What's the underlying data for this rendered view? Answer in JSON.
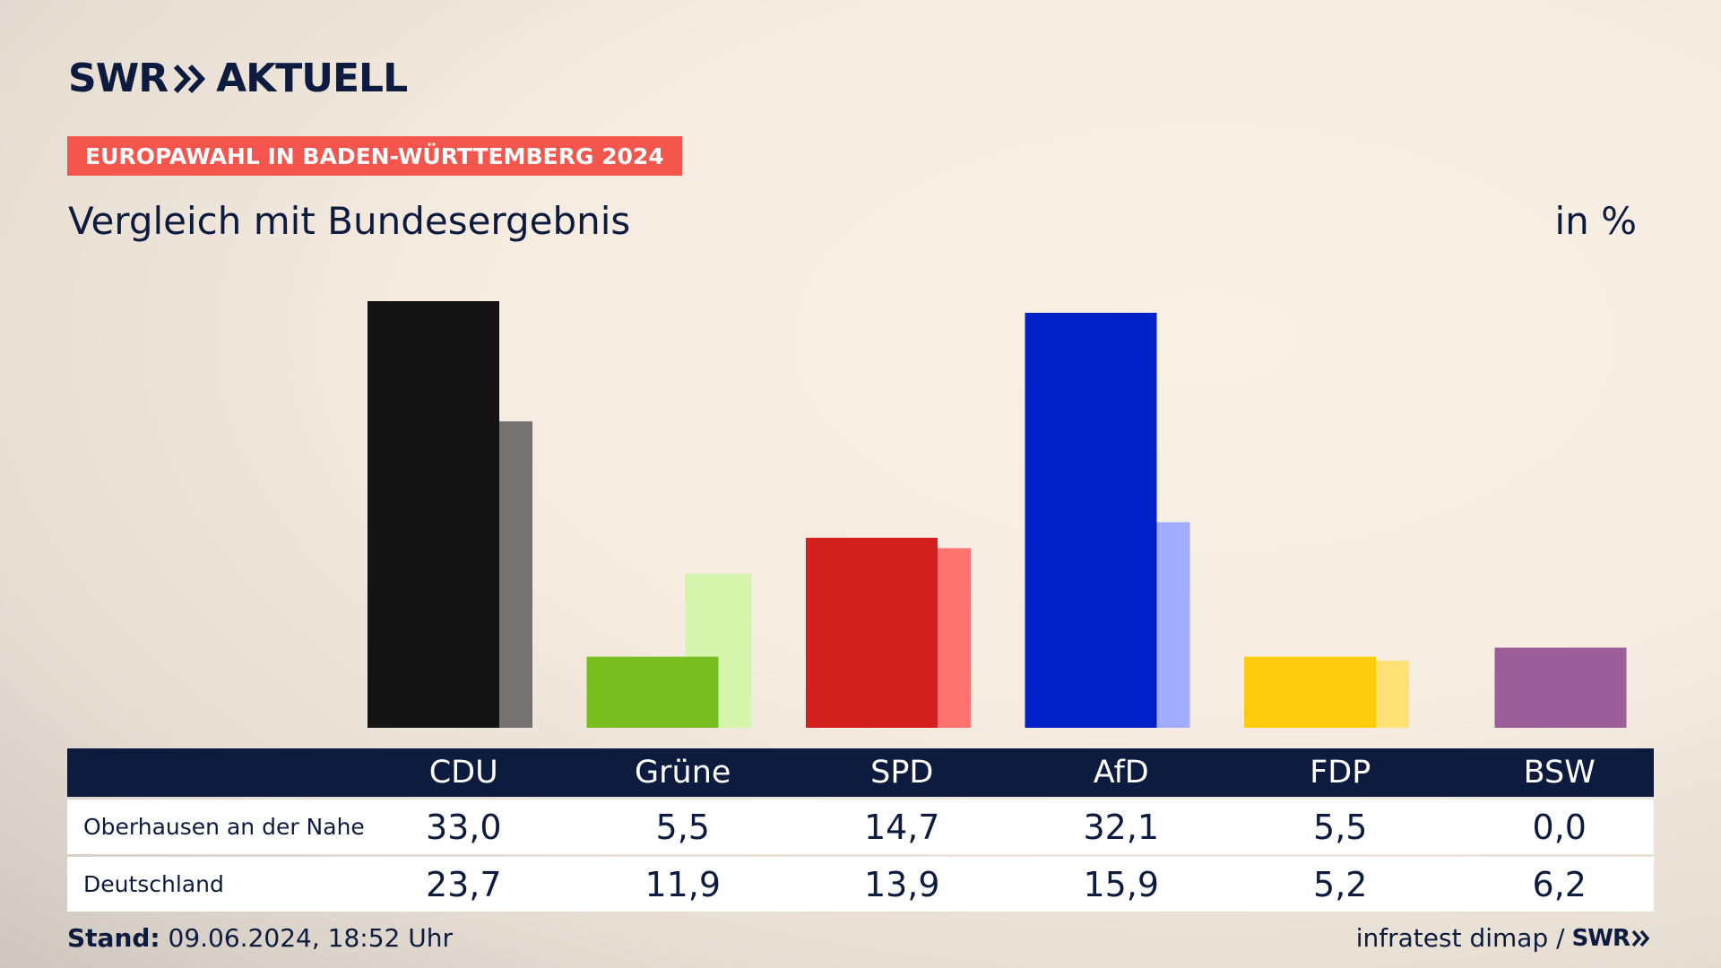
{
  "header": {
    "brand": "SWR",
    "brand_product": "AKTUELL",
    "badge": "EUROPAWAHL IN BADEN-WÜRTTEMBERG 2024",
    "title": "Vergleich mit Bundesergebnis",
    "unit": "in %"
  },
  "chart_data": {
    "type": "bar",
    "categories": [
      "CDU",
      "Grüne",
      "SPD",
      "AfD",
      "FDP",
      "BSW"
    ],
    "series": [
      {
        "name": "Oberhausen an der Nahe",
        "values": [
          33.0,
          5.5,
          14.7,
          32.1,
          5.5,
          0.0
        ],
        "colors": [
          "#141414",
          "#78be1e",
          "#d41f1f",
          "#0021c8",
          "#ffcc0d",
          "#9b5e98"
        ]
      },
      {
        "name": "Deutschland",
        "values": [
          23.7,
          11.9,
          13.9,
          15.9,
          5.2,
          6.2
        ],
        "colors": [
          "#747371",
          "#d5f5ac",
          "#ff7470",
          "#a1acff",
          "#ffe075",
          "#9b5e98"
        ]
      }
    ],
    "ylim": [
      0,
      33
    ],
    "legend": "none",
    "grid": false
  },
  "table": {
    "header": [
      "",
      "CDU",
      "Grüne",
      "SPD",
      "AfD",
      "FDP",
      "BSW"
    ],
    "rows": [
      {
        "label": "Oberhausen an der Nahe",
        "values": [
          "33,0",
          "5,5",
          "14,7",
          "32,1",
          "5,5",
          "0,0"
        ]
      },
      {
        "label": "Deutschland",
        "values": [
          "23,7",
          "11,9",
          "13,9",
          "15,9",
          "5,2",
          "6,2"
        ]
      }
    ]
  },
  "footer": {
    "stand_label": "Stand:",
    "stand_value": " 09.06.2024, 18:52 Uhr",
    "source": "infratest dimap /",
    "source_brand": "SWR"
  }
}
